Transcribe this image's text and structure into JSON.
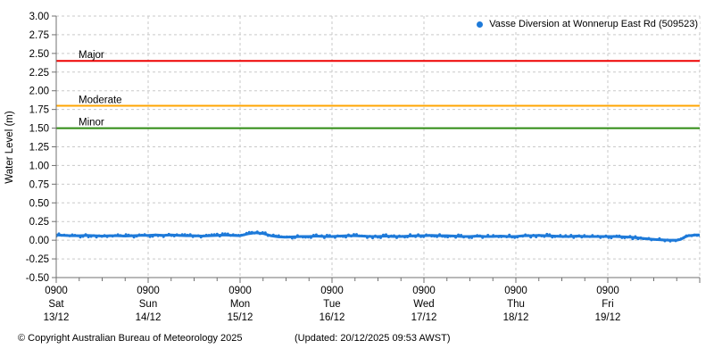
{
  "chart_data": {
    "type": "scatter",
    "title": "",
    "ylabel": "Water Level (m)",
    "ylim": [
      -0.5,
      3.0
    ],
    "ytick_step": 0.25,
    "yticks": [
      "3.00",
      "2.75",
      "2.50",
      "2.25",
      "2.00",
      "1.75",
      "1.50",
      "1.25",
      "1.00",
      "0.75",
      "0.50",
      "0.25",
      "0.00",
      "-0.25",
      "-0.50"
    ],
    "grid": true,
    "x_hours_span": 168,
    "x_major_every_hours": 24,
    "x_minor_every_hours": 6,
    "xticks": [
      {
        "time": "0900",
        "day": "Sat",
        "date": "13/12"
      },
      {
        "time": "0900",
        "day": "Sun",
        "date": "14/12"
      },
      {
        "time": "0900",
        "day": "Mon",
        "date": "15/12"
      },
      {
        "time": "0900",
        "day": "Tue",
        "date": "16/12"
      },
      {
        "time": "0900",
        "day": "Wed",
        "date": "17/12"
      },
      {
        "time": "0900",
        "day": "Thu",
        "date": "18/12"
      },
      {
        "time": "0900",
        "day": "Fri",
        "date": "19/12"
      }
    ],
    "legend": {
      "label": "Vasse Diversion at Wonnerup East Rd (509523)",
      "marker_color": "#1e7ad9",
      "position": "top-right"
    },
    "thresholds": [
      {
        "label": "Major",
        "value": 2.4,
        "color": "#ee0000"
      },
      {
        "label": "Moderate",
        "value": 1.8,
        "color": "#ffa500"
      },
      {
        "label": "Minor",
        "value": 1.5,
        "color": "#2e8b12"
      }
    ],
    "colors": {
      "grid": "#c9c9c9",
      "axis": "#707070",
      "text": "#000000"
    },
    "series": [
      {
        "name": "Vasse Diversion at Wonnerup East Rd (509523)",
        "color": "#1e7ad9",
        "points": [
          [
            0,
            0.07
          ],
          [
            2,
            0.065
          ],
          [
            4,
            0.06
          ],
          [
            6,
            0.06
          ],
          [
            8,
            0.065
          ],
          [
            10,
            0.06
          ],
          [
            12,
            0.055
          ],
          [
            14,
            0.06
          ],
          [
            16,
            0.06
          ],
          [
            18,
            0.055
          ],
          [
            20,
            0.06
          ],
          [
            22,
            0.065
          ],
          [
            24,
            0.065
          ],
          [
            26,
            0.07
          ],
          [
            28,
            0.065
          ],
          [
            30,
            0.07
          ],
          [
            32,
            0.065
          ],
          [
            34,
            0.06
          ],
          [
            36,
            0.06
          ],
          [
            38,
            0.055
          ],
          [
            40,
            0.06
          ],
          [
            42,
            0.065
          ],
          [
            44,
            0.07
          ],
          [
            46,
            0.065
          ],
          [
            48,
            0.06
          ],
          [
            50,
            0.085
          ],
          [
            52,
            0.1
          ],
          [
            54,
            0.09
          ],
          [
            56,
            0.06
          ],
          [
            58,
            0.045
          ],
          [
            60,
            0.04
          ],
          [
            62,
            0.045
          ],
          [
            64,
            0.05
          ],
          [
            66,
            0.05
          ],
          [
            68,
            0.055
          ],
          [
            70,
            0.05
          ],
          [
            72,
            0.05
          ],
          [
            74,
            0.055
          ],
          [
            76,
            0.06
          ],
          [
            78,
            0.06
          ],
          [
            80,
            0.055
          ],
          [
            82,
            0.05
          ],
          [
            84,
            0.05
          ],
          [
            86,
            0.055
          ],
          [
            88,
            0.05
          ],
          [
            90,
            0.05
          ],
          [
            92,
            0.055
          ],
          [
            94,
            0.06
          ],
          [
            96,
            0.06
          ],
          [
            98,
            0.065
          ],
          [
            100,
            0.06
          ],
          [
            102,
            0.06
          ],
          [
            104,
            0.055
          ],
          [
            106,
            0.05
          ],
          [
            108,
            0.05
          ],
          [
            110,
            0.055
          ],
          [
            112,
            0.05
          ],
          [
            114,
            0.05
          ],
          [
            116,
            0.055
          ],
          [
            118,
            0.05
          ],
          [
            120,
            0.05
          ],
          [
            122,
            0.06
          ],
          [
            124,
            0.06
          ],
          [
            126,
            0.065
          ],
          [
            128,
            0.06
          ],
          [
            130,
            0.055
          ],
          [
            132,
            0.05
          ],
          [
            134,
            0.05
          ],
          [
            136,
            0.055
          ],
          [
            138,
            0.05
          ],
          [
            140,
            0.05
          ],
          [
            142,
            0.05
          ],
          [
            144,
            0.05
          ],
          [
            146,
            0.05
          ],
          [
            148,
            0.045
          ],
          [
            150,
            0.04
          ],
          [
            152,
            0.03
          ],
          [
            154,
            0.02
          ],
          [
            156,
            0.01
          ],
          [
            158,
            0.005
          ],
          [
            160,
            0.0
          ],
          [
            162,
            0.0
          ],
          [
            163,
            0.01
          ],
          [
            164,
            0.04
          ],
          [
            165,
            0.06
          ],
          [
            166,
            0.065
          ],
          [
            167,
            0.07
          ],
          [
            168,
            0.07
          ]
        ]
      }
    ]
  },
  "footer": {
    "copyright": "© Copyright Australian Bureau of Meteorology 2025",
    "updated": "(Updated: 20/12/2025 09:53 AWST)"
  }
}
